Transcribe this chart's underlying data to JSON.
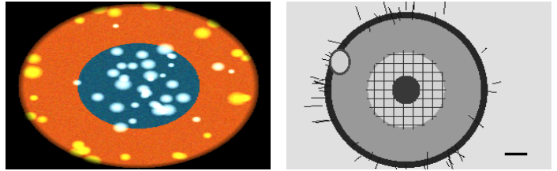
{
  "background_color": "#ffffff",
  "figsize": [
    7.06,
    2.17
  ],
  "dpi": 100,
  "scale_bar": {
    "color": "#000000",
    "linewidth": 2.5
  }
}
